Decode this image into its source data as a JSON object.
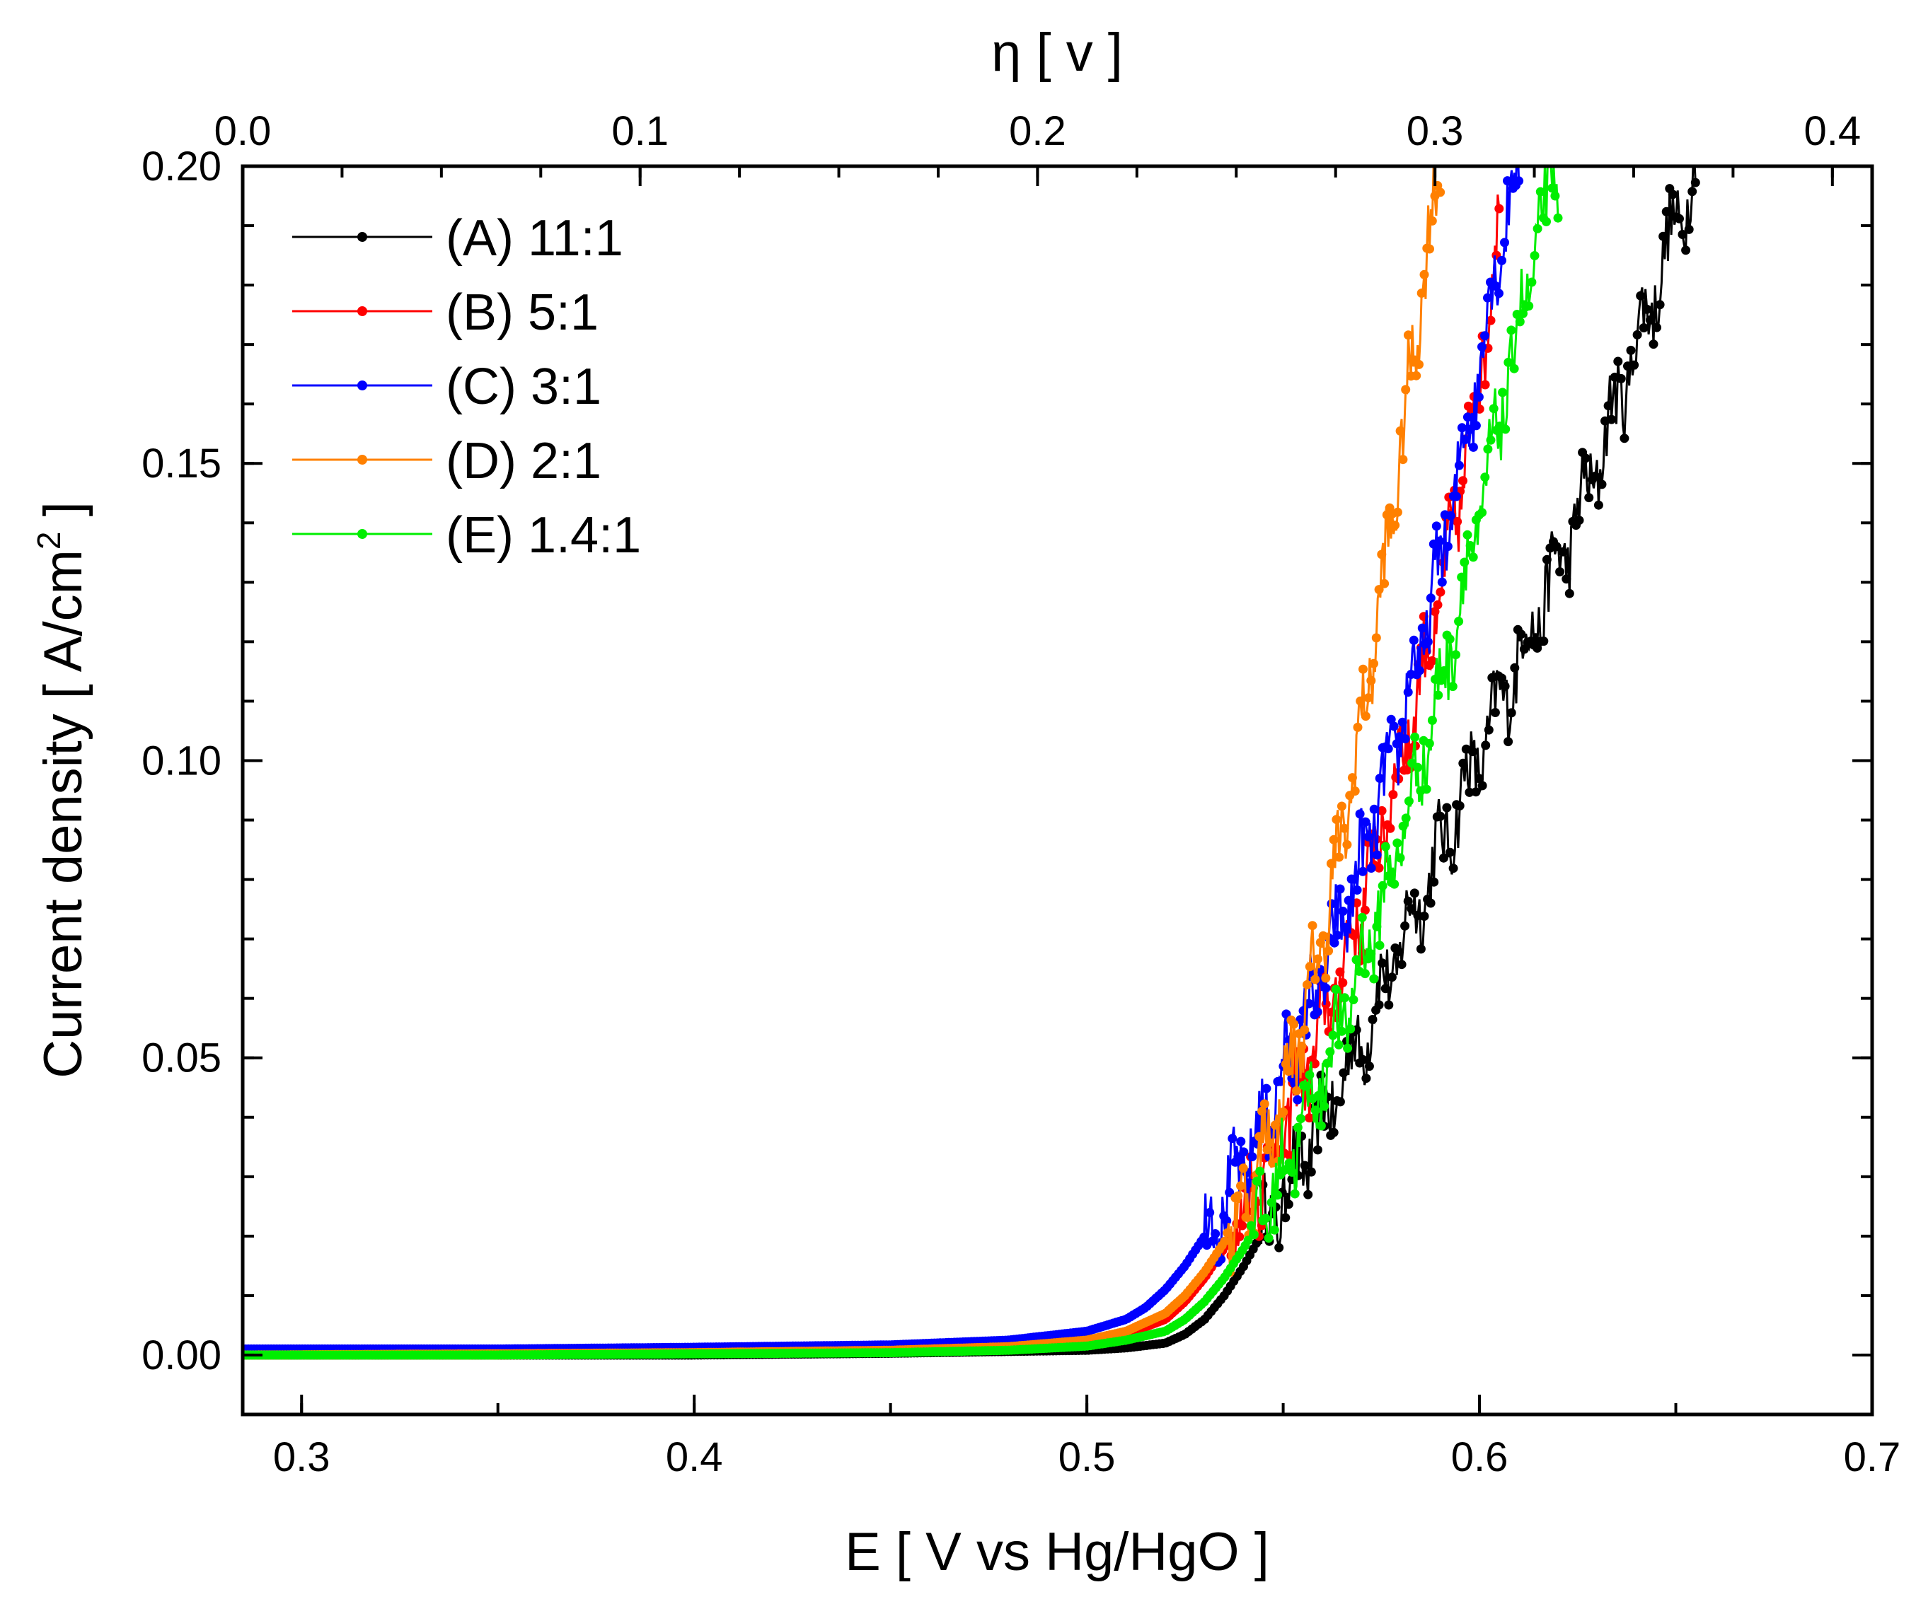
{
  "chart_data": {
    "type": "line",
    "title": "",
    "xlabel": "E [ V vs Hg/HgO ]",
    "ylabel": "Current density [ A/cm",
    "ylabel_sup": "2",
    "ylabel_end": " ]",
    "top_xlabel": "η [ v ]",
    "xlim": [
      0.285,
      0.7
    ],
    "ylim": [
      -0.01,
      0.2
    ],
    "top_xlim": [
      0.0,
      0.41
    ],
    "x_ticks": [
      0.3,
      0.4,
      0.5,
      0.6,
      0.7
    ],
    "x_tick_labels": [
      "0.3",
      "0.4",
      "0.5",
      "0.6",
      "0.7"
    ],
    "y_ticks": [
      0.0,
      0.05,
      0.1,
      0.15,
      0.2
    ],
    "y_tick_labels": [
      "0.00",
      "0.05",
      "0.10",
      "0.15",
      "0.20"
    ],
    "top_ticks": [
      0.0,
      0.1,
      0.2,
      0.3,
      0.4
    ],
    "top_tick_labels": [
      "0.0",
      "0.1",
      "0.2",
      "0.3",
      "0.4"
    ],
    "legend_position": "top-left",
    "series": [
      {
        "name": "(A) 11:1",
        "color": "#000000",
        "x": [
          0.285,
          0.35,
          0.4,
          0.45,
          0.48,
          0.5,
          0.51,
          0.52,
          0.525,
          0.53,
          0.535,
          0.54,
          0.545,
          0.55,
          0.555,
          0.56,
          0.565,
          0.57,
          0.575,
          0.58,
          0.585,
          0.59,
          0.595,
          0.6,
          0.605,
          0.61,
          0.615,
          0.62,
          0.625,
          0.63,
          0.635,
          0.64,
          0.645,
          0.65,
          0.655
        ],
        "y": [
          0.0,
          0.0,
          0.0,
          0.0003,
          0.0006,
          0.0008,
          0.0012,
          0.002,
          0.0035,
          0.006,
          0.01,
          0.015,
          0.021,
          0.027,
          0.033,
          0.039,
          0.046,
          0.053,
          0.061,
          0.069,
          0.077,
          0.085,
          0.093,
          0.101,
          0.109,
          0.117,
          0.125,
          0.133,
          0.141,
          0.15,
          0.16,
          0.17,
          0.18,
          0.19,
          0.2
        ]
      },
      {
        "name": "(B) 5:1",
        "color": "#ff0000",
        "x": [
          0.285,
          0.35,
          0.4,
          0.45,
          0.48,
          0.5,
          0.51,
          0.52,
          0.525,
          0.53,
          0.535,
          0.54,
          0.545,
          0.55,
          0.555,
          0.56,
          0.565,
          0.57,
          0.575,
          0.58,
          0.585,
          0.59,
          0.595,
          0.6,
          0.605
        ],
        "y": [
          0.0,
          0.0,
          0.0003,
          0.0006,
          0.0012,
          0.0022,
          0.0035,
          0.006,
          0.009,
          0.013,
          0.018,
          0.024,
          0.031,
          0.038,
          0.046,
          0.055,
          0.065,
          0.076,
          0.088,
          0.1,
          0.113,
          0.127,
          0.145,
          0.165,
          0.19
        ]
      },
      {
        "name": "(C) 3:1",
        "color": "#0000ff",
        "x": [
          0.285,
          0.35,
          0.4,
          0.45,
          0.48,
          0.5,
          0.51,
          0.515,
          0.52,
          0.525,
          0.53,
          0.535,
          0.54,
          0.545,
          0.55,
          0.555,
          0.56,
          0.565,
          0.57,
          0.575,
          0.58,
          0.585,
          0.59,
          0.595,
          0.6,
          0.605,
          0.61
        ],
        "y": [
          0.001,
          0.001,
          0.0013,
          0.0017,
          0.0025,
          0.004,
          0.006,
          0.008,
          0.011,
          0.015,
          0.02,
          0.026,
          0.032,
          0.039,
          0.047,
          0.055,
          0.064,
          0.073,
          0.083,
          0.094,
          0.106,
          0.119,
          0.133,
          0.149,
          0.167,
          0.186,
          0.2
        ]
      },
      {
        "name": "(D) 2:1",
        "color": "#ff8000",
        "x": [
          0.285,
          0.35,
          0.4,
          0.45,
          0.48,
          0.5,
          0.51,
          0.52,
          0.525,
          0.53,
          0.535,
          0.54,
          0.545,
          0.55,
          0.555,
          0.56,
          0.565,
          0.57,
          0.575,
          0.58,
          0.585,
          0.59
        ],
        "y": [
          0.0,
          0.0002,
          0.0004,
          0.0008,
          0.0014,
          0.0025,
          0.004,
          0.007,
          0.01,
          0.014,
          0.019,
          0.026,
          0.034,
          0.044,
          0.056,
          0.07,
          0.087,
          0.106,
          0.128,
          0.152,
          0.178,
          0.2
        ]
      },
      {
        "name": "(E) 1.4:1",
        "color": "#00ee00",
        "x": [
          0.285,
          0.35,
          0.4,
          0.45,
          0.48,
          0.5,
          0.51,
          0.52,
          0.525,
          0.53,
          0.535,
          0.54,
          0.545,
          0.55,
          0.555,
          0.56,
          0.565,
          0.57,
          0.575,
          0.58,
          0.585,
          0.59,
          0.595,
          0.6,
          0.605,
          0.61,
          0.615,
          0.62
        ],
        "y": [
          0.0,
          0.0,
          0.0002,
          0.0004,
          0.0008,
          0.0015,
          0.0025,
          0.004,
          0.006,
          0.009,
          0.013,
          0.018,
          0.024,
          0.031,
          0.039,
          0.047,
          0.056,
          0.066,
          0.076,
          0.087,
          0.099,
          0.112,
          0.126,
          0.141,
          0.157,
          0.173,
          0.188,
          0.2
        ]
      }
    ]
  }
}
